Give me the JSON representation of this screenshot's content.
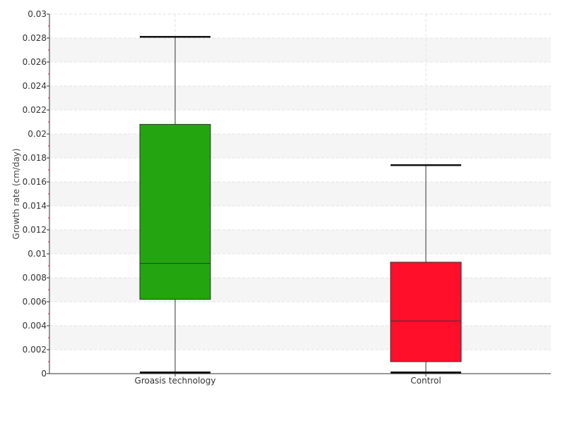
{
  "chart_data": {
    "type": "box",
    "title": "",
    "xlabel": "",
    "ylabel": "Growth rate (cm/day)",
    "ylim": [
      0,
      0.03
    ],
    "yticks": [
      "0",
      "0.002",
      "0.004",
      "0.006",
      "0.008",
      "0.01",
      "0.012",
      "0.014",
      "0.016",
      "0.018",
      "0.02",
      "0.022",
      "0.024",
      "0.026",
      "0.028",
      "0.03"
    ],
    "grid": true,
    "legend": "none",
    "categories": [
      "Groasis technology",
      "Control"
    ],
    "boxes": [
      {
        "category": "Groasis technology",
        "min": 0.0001,
        "q1": 0.0062,
        "median": 0.0092,
        "q3": 0.0208,
        "max": 0.0281,
        "color": "#22a50f"
      },
      {
        "category": "Control",
        "min": 0.0001,
        "q1": 0.001,
        "median": 0.0044,
        "q3": 0.0093,
        "max": 0.0174,
        "color": "#ff0f2a"
      }
    ]
  }
}
